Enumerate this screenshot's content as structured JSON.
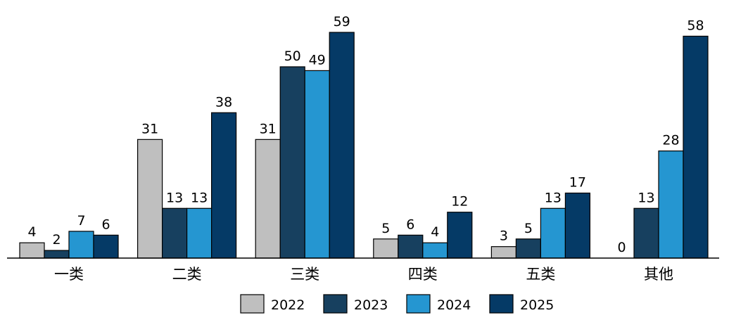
{
  "chart_data": {
    "type": "bar",
    "categories": [
      "一类",
      "二类",
      "三类",
      "四类",
      "五类",
      "其他"
    ],
    "series": [
      {
        "name": "2022",
        "color": "#bfbfbf",
        "values": [
          4,
          31,
          31,
          5,
          3,
          0
        ]
      },
      {
        "name": "2023",
        "color": "#17405f",
        "values": [
          2,
          13,
          50,
          6,
          5,
          13
        ]
      },
      {
        "name": "2024",
        "color": "#2596d1",
        "values": [
          7,
          13,
          49,
          4,
          13,
          28
        ]
      },
      {
        "name": "2025",
        "color": "#053a66",
        "values": [
          6,
          38,
          59,
          12,
          17,
          58
        ]
      }
    ],
    "title": "",
    "xlabel": "",
    "ylabel": "",
    "ylim": [
      0,
      59
    ],
    "grid": false,
    "data_labels": true,
    "legend_position": "bottom"
  }
}
